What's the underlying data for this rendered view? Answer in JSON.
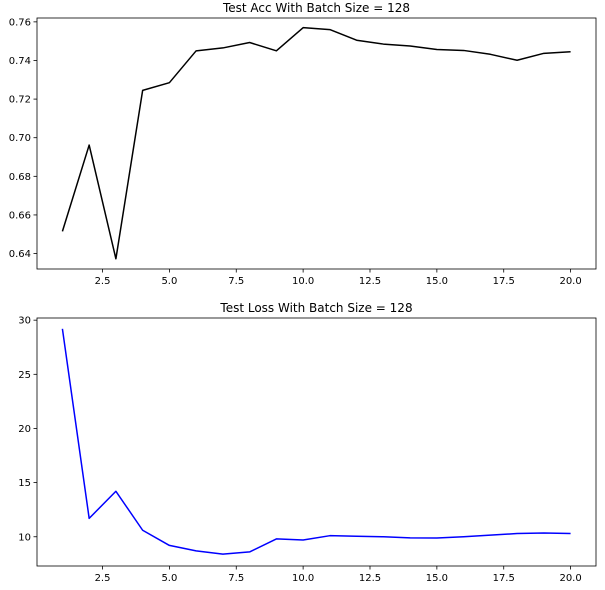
{
  "chart_data": [
    {
      "type": "line",
      "title": "Test Acc With Batch Size = 128",
      "xlabel": "",
      "ylabel": "",
      "xlim": [
        0.05,
        20.95
      ],
      "ylim": [
        0.632,
        0.762
      ],
      "xticks": [
        2.5,
        5.0,
        7.5,
        10.0,
        12.5,
        15.0,
        17.5,
        20.0
      ],
      "xtick_labels": [
        "2.5",
        "5.0",
        "7.5",
        "10.0",
        "12.5",
        "15.0",
        "17.5",
        "20.0"
      ],
      "yticks": [
        0.64,
        0.66,
        0.68,
        0.7,
        0.72,
        0.74,
        0.76
      ],
      "ytick_labels": [
        "0.64",
        "0.66",
        "0.68",
        "0.70",
        "0.72",
        "0.74",
        "0.76"
      ],
      "grid": false,
      "series": [
        {
          "color": "#000000",
          "x": [
            1,
            2,
            3,
            4,
            5,
            6,
            7,
            8,
            9,
            10,
            11,
            12,
            13,
            14,
            15,
            16,
            17,
            18,
            19,
            20
          ],
          "y": [
            0.6515,
            0.6962,
            0.6373,
            0.7245,
            0.7285,
            0.745,
            0.7465,
            0.7493,
            0.745,
            0.757,
            0.756,
            0.7505,
            0.7485,
            0.7475,
            0.7457,
            0.7452,
            0.7432,
            0.7401,
            0.7437,
            0.7445
          ]
        }
      ]
    },
    {
      "type": "line",
      "title": "Test Loss With Batch Size = 128",
      "xlabel": "",
      "ylabel": "",
      "xlim": [
        0.05,
        20.95
      ],
      "ylim": [
        7.3,
        30.2
      ],
      "xticks": [
        2.5,
        5.0,
        7.5,
        10.0,
        12.5,
        15.0,
        17.5,
        20.0
      ],
      "xtick_labels": [
        "2.5",
        "5.0",
        "7.5",
        "10.0",
        "12.5",
        "15.0",
        "17.5",
        "20.0"
      ],
      "yticks": [
        10,
        15,
        20,
        25,
        30
      ],
      "ytick_labels": [
        "10",
        "15",
        "20",
        "25",
        "30"
      ],
      "grid": false,
      "series": [
        {
          "color": "#0000ff",
          "x": [
            1,
            2,
            3,
            4,
            5,
            6,
            7,
            8,
            9,
            10,
            11,
            12,
            13,
            14,
            15,
            16,
            17,
            18,
            19,
            20
          ],
          "y": [
            29.2,
            11.7,
            14.2,
            10.6,
            9.2,
            8.7,
            8.4,
            8.6,
            9.8,
            9.7,
            10.1,
            10.05,
            10.0,
            9.9,
            9.88,
            10.0,
            10.15,
            10.3,
            10.35,
            10.3
          ]
        }
      ]
    }
  ]
}
